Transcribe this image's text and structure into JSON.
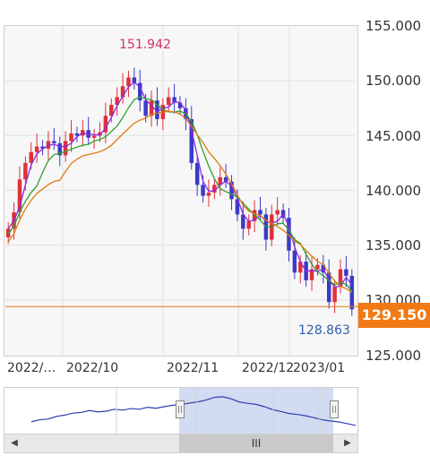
{
  "chart": {
    "y_ticks": [
      "155.000",
      "150.000",
      "145.000",
      "140.000",
      "135.000",
      "130.000",
      "125.000"
    ],
    "x_ticks": [
      "2022/…",
      "2022/10",
      "2022/11",
      "2022/12",
      "2023/01"
    ],
    "current_price": "129.150",
    "high_label": "151.942",
    "low_label": "128.863",
    "colors": {
      "up": "#e0303a",
      "down": "#3a3ac8",
      "ma_short": "#8a2be2",
      "ma_mid": "#2ea02e",
      "ma_long": "#e07a10",
      "current_line": "#e07a10",
      "high": "#d0306a",
      "low": "#2f5fae"
    }
  },
  "scrollbar": {
    "left_icon": "left-arrow-icon",
    "right_icon": "right-arrow-icon",
    "thumb_label": "III"
  },
  "navigator": {
    "handle_label": "||"
  },
  "chart_data": {
    "type": "line",
    "series": [
      {
        "values": [
          136.5,
          138,
          141,
          142.5,
          143.5,
          144,
          143.8,
          144.5,
          144.3,
          143.2,
          144.5,
          145.2,
          145,
          145.5,
          144.8,
          145,
          145.3,
          146.8,
          147.8,
          148.5,
          149.5,
          150.3,
          149.8,
          148.2,
          146.8,
          148.2,
          146.5,
          147.8,
          148.5,
          148,
          147.5,
          146.5,
          142.5,
          140.5,
          139.5,
          139.8,
          140.5,
          141.2,
          140.8,
          139.2,
          137.8,
          136.5,
          137.2,
          138.2,
          137.8,
          135.5,
          137.8,
          138.2,
          137.5,
          134.5,
          132.5,
          133.5,
          131.8,
          132.8,
          133.2,
          132.5,
          129.8,
          131.2,
          132.8,
          132.2,
          129.15
        ]
      }
    ],
    "ylim": [
      125,
      155
    ]
  }
}
